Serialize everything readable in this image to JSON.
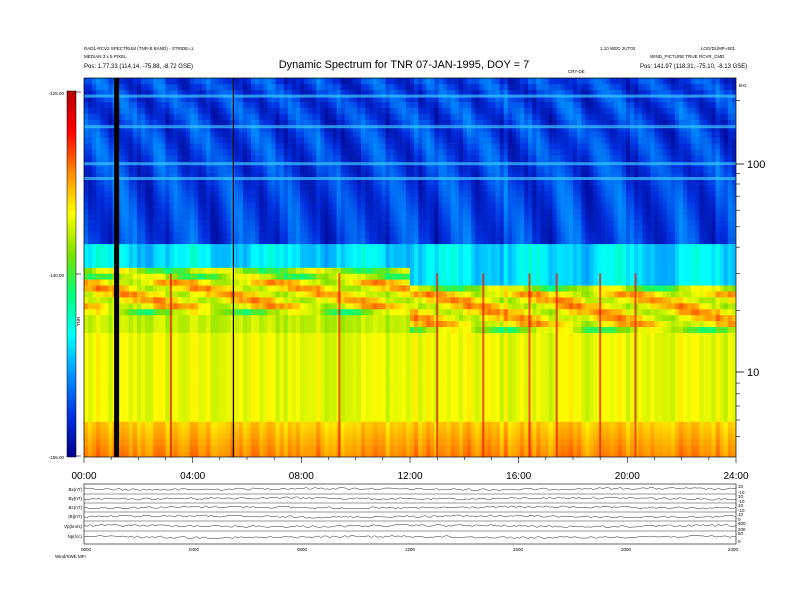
{
  "header": {
    "title": "Dynamic Spectrum for TNR 07-JAN-1995, DOY = 7",
    "top_left_line1": "RAD1-RCV2 SPECTRUM (TNR-B BAND) - STRIDE=1",
    "top_left_line2": "MEDIAN 3 x 5 PIXEL",
    "top_left_line3": "Pos: 1.77.33 (114.14, -75.88, -8.72 GSE)",
    "top_right_line1": "1.10 WED 2UT02",
    "top_right_line2": "WIND_PICTURE TRUE RCVR_CMD",
    "top_right_line3": "Pos: 141.97 (118.31, -75.10, -8.13 GSE)",
    "top_right_tag": "LOG/DUMP=501",
    "center_tag": "CRY-DE",
    "corner_tag": "kHz"
  },
  "colorbar": {
    "ticks": [
      "-125.00",
      "-140.00",
      "-155.00"
    ],
    "label": "TNR",
    "stops": [
      "#b40000",
      "#ff0000",
      "#ff8a00",
      "#ffff00",
      "#7fe000",
      "#00ff7a",
      "#00ffff",
      "#0090ff",
      "#0030e0",
      "#00008a"
    ]
  },
  "chart_data": {
    "type": "heatmap",
    "title": "Dynamic Spectrum for TNR 07-JAN-1995, DOY = 7",
    "x": {
      "label": "",
      "ticks": [
        "00:00",
        "04:00",
        "08:00",
        "12:00",
        "16:00",
        "20:00",
        "24:00"
      ],
      "range_hours": [
        0,
        24
      ]
    },
    "y": {
      "label": "kHz",
      "scale": "log",
      "ticks": [
        "10",
        "100"
      ],
      "range_khz": [
        4,
        256
      ]
    },
    "color_range_db": [
      -155,
      -125
    ],
    "features": {
      "dark_vertical_gaps_hours": [
        1.2,
        5.5
      ],
      "plasma_line_khz_before_12h": 25,
      "plasma_line_khz_after_12h": 21,
      "bright_bursts_hours": [
        3.2,
        9.4,
        13.0,
        14.7,
        16.4,
        17.4,
        19.0,
        20.3
      ]
    }
  },
  "bottom_panels": {
    "rows": [
      {
        "left": "Bx(nT)",
        "right": [
          "10",
          "-10"
        ]
      },
      {
        "left": "By(nT)",
        "right": [
          "10",
          "-10"
        ]
      },
      {
        "left": "Bz(nT)",
        "right": [
          "10",
          "-10"
        ]
      },
      {
        "left": "|B|(nT)",
        "right": [
          "10",
          "0"
        ]
      },
      {
        "left": "Vp(km/s)",
        "right": [
          "800",
          "200"
        ]
      },
      {
        "left": "Np(/cc)",
        "right": [
          "50",
          "0"
        ]
      }
    ],
    "x_ticks": [
      "0000",
      "0400",
      "0800",
      "1200",
      "1600",
      "2000",
      "2400"
    ],
    "footer": "Wind/SWE  MFI"
  }
}
